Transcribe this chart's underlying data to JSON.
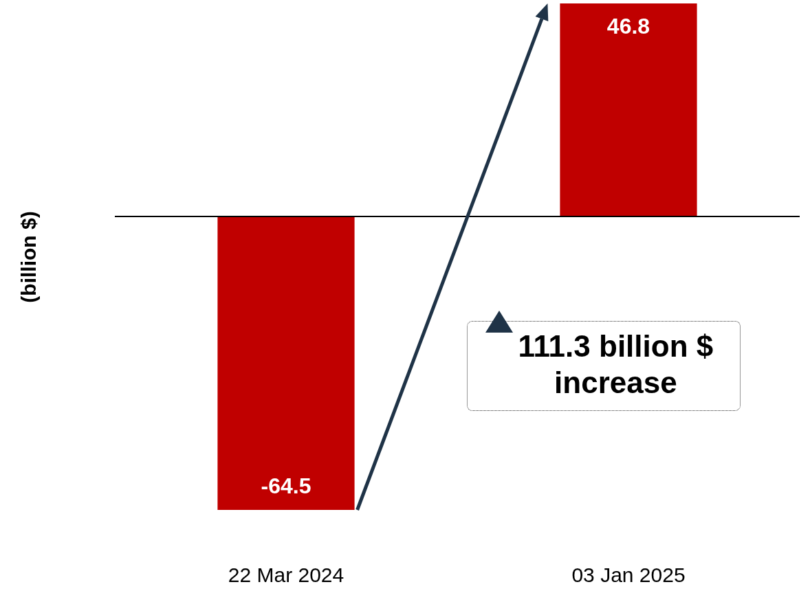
{
  "chart_data": {
    "type": "bar",
    "categories": [
      "22 Mar 2024",
      "03 Jan 2025"
    ],
    "values": [
      -64.5,
      46.8
    ],
    "color": "#c00000",
    "data_labels": true,
    "ylabel": "(billion $)",
    "relative": false,
    "annotations": [
      "111.3 billion $ increase"
    ]
  }
}
